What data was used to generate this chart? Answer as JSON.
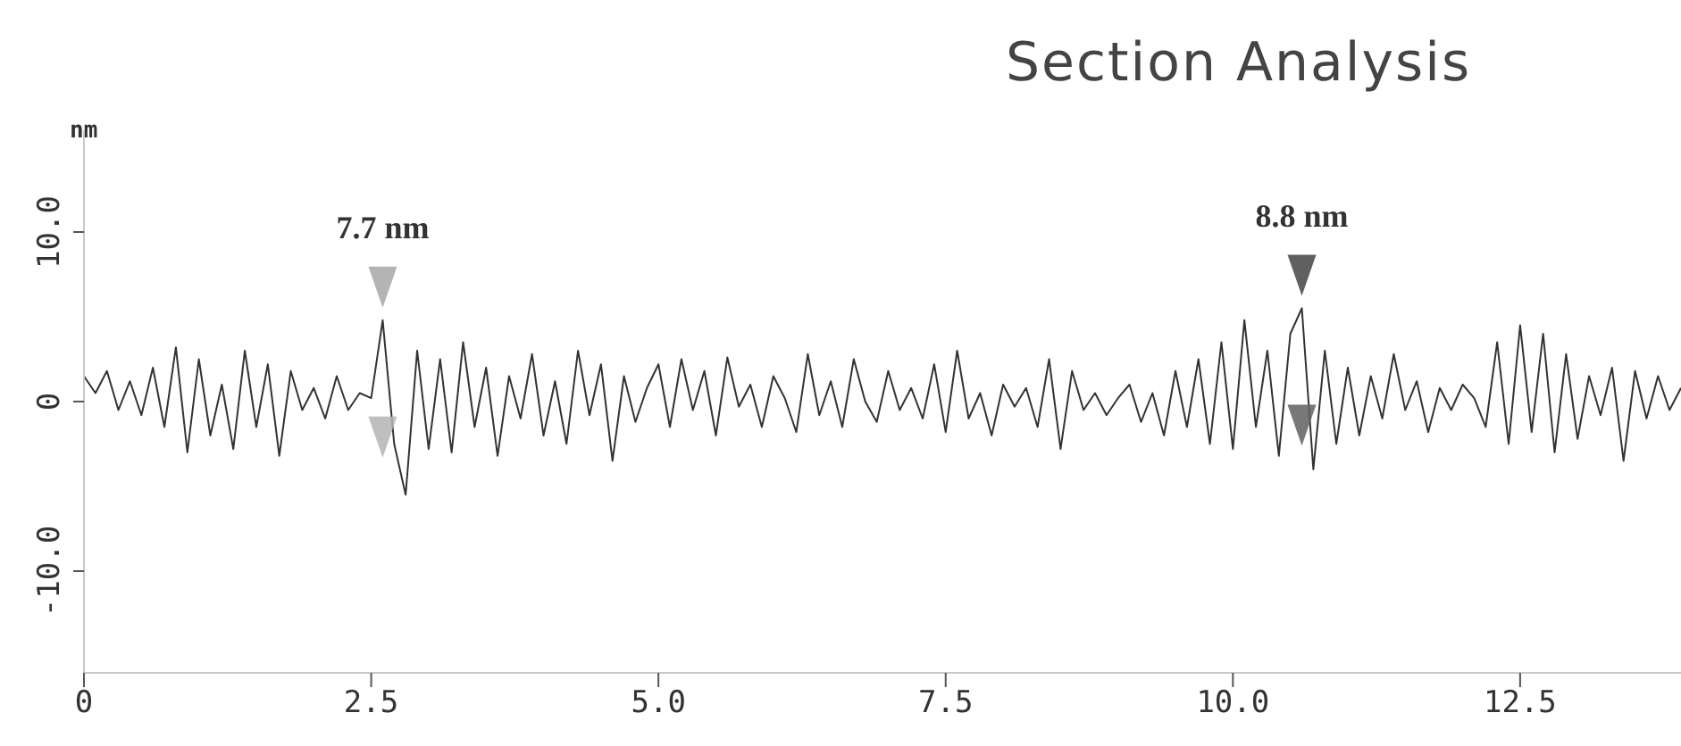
{
  "chart_data": {
    "type": "line",
    "title": "Section Analysis",
    "ylabel": "nm",
    "x": [
      0,
      0.1,
      0.2,
      0.3,
      0.4,
      0.5,
      0.6,
      0.7,
      0.8,
      0.9,
      1,
      1.1,
      1.2,
      1.3,
      1.4,
      1.5,
      1.6,
      1.7,
      1.8,
      1.9,
      2,
      2.1,
      2.2,
      2.3,
      2.4,
      2.5,
      2.6,
      2.7,
      2.8,
      2.9,
      3,
      3.1,
      3.2,
      3.3,
      3.4,
      3.5,
      3.6,
      3.7,
      3.8,
      3.9,
      4,
      4.1,
      4.2,
      4.3,
      4.4,
      4.5,
      4.6,
      4.7,
      4.8,
      4.9,
      5,
      5.1,
      5.2,
      5.3,
      5.4,
      5.5,
      5.6,
      5.7,
      5.8,
      5.9,
      6,
      6.1,
      6.2,
      6.3,
      6.4,
      6.5,
      6.6,
      6.7,
      6.8,
      6.9,
      7,
      7.1,
      7.2,
      7.3,
      7.4,
      7.5,
      7.6,
      7.7,
      7.8,
      7.9,
      8,
      8.1,
      8.2,
      8.3,
      8.4,
      8.5,
      8.6,
      8.7,
      8.8,
      8.9,
      9,
      9.1,
      9.2,
      9.3,
      9.4,
      9.5,
      9.6,
      9.7,
      9.8,
      9.9,
      10,
      10.1,
      10.2,
      10.3,
      10.4,
      10.5,
      10.6,
      10.7,
      10.8,
      10.9,
      11,
      11.1,
      11.2,
      11.3,
      11.4,
      11.5,
      11.6,
      11.7,
      11.8,
      11.9,
      12,
      12.1,
      12.2,
      12.3,
      12.4,
      12.5,
      12.6,
      12.7,
      12.8,
      12.9,
      13,
      13.1,
      13.2,
      13.3,
      13.4,
      13.5,
      13.6,
      13.7,
      13.8,
      13.9
    ],
    "series": [
      {
        "color": "#333333",
        "values": [
          1.5,
          0.5,
          1.8,
          -0.5,
          1.2,
          -0.8,
          2.0,
          -1.5,
          3.2,
          -3.0,
          2.5,
          -2.0,
          1.0,
          -2.8,
          3.0,
          -1.5,
          2.2,
          -3.2,
          1.8,
          -0.5,
          0.8,
          -1.0,
          1.5,
          -0.5,
          0.5,
          0.2,
          4.8,
          -2.5,
          -5.5,
          3.0,
          -2.8,
          2.5,
          -3.0,
          3.5,
          -1.5,
          2.0,
          -3.2,
          1.5,
          -1.0,
          2.8,
          -2.0,
          1.2,
          -2.5,
          3.0,
          -0.8,
          2.2,
          -3.5,
          1.5,
          -1.2,
          0.8,
          2.2,
          -1.5,
          2.5,
          -0.5,
          1.8,
          -2.0,
          2.6,
          -0.3,
          1.0,
          -1.5,
          1.5,
          0.2,
          -1.8,
          2.8,
          -0.8,
          1.2,
          -1.5,
          2.5,
          0.0,
          -1.2,
          1.8,
          -0.5,
          0.8,
          -1.0,
          2.2,
          -1.8,
          3.0,
          -1.0,
          0.5,
          -2.0,
          1.0,
          -0.3,
          0.8,
          -1.5,
          2.5,
          -2.8,
          1.8,
          -0.5,
          0.5,
          -0.8,
          0.2,
          1.0,
          -1.2,
          0.5,
          -2.0,
          1.8,
          -1.5,
          2.5,
          -2.5,
          3.5,
          -2.8,
          4.8,
          -1.5,
          3.0,
          -3.2,
          4.0,
          5.5,
          -4.0,
          3.0,
          -2.5,
          2.0,
          -2.0,
          1.5,
          -1.0,
          2.8,
          -0.5,
          1.2,
          -1.8,
          0.8,
          -0.5,
          1.0,
          0.2,
          -1.5,
          3.5,
          -2.5,
          4.5,
          -1.8,
          4.0,
          -3.0,
          2.8,
          -2.2,
          1.5,
          -0.8,
          2.0,
          -3.5,
          1.8,
          -1.0,
          1.5,
          -0.5,
          0.8
        ]
      }
    ],
    "annotations": [
      {
        "text": "7.7 nm",
        "x": 2.6,
        "y": 4.8
      },
      {
        "text": "8.8 nm",
        "x": 10.6,
        "y": 5.5
      }
    ],
    "xlim": [
      0,
      13.9
    ],
    "xticks": [
      0,
      2.5,
      {
        "value": 5,
        "label": "5.0"
      },
      7.5,
      {
        "value": 10,
        "label": "10.0"
      },
      12.5
    ],
    "ylim": [
      -16,
      16
    ],
    "yticks": [
      {
        "value": -10,
        "label": "-10.0"
      },
      0,
      {
        "value": 10,
        "label": "10.0"
      }
    ],
    "grid": false,
    "marker": "none",
    "line_style": "solid"
  }
}
